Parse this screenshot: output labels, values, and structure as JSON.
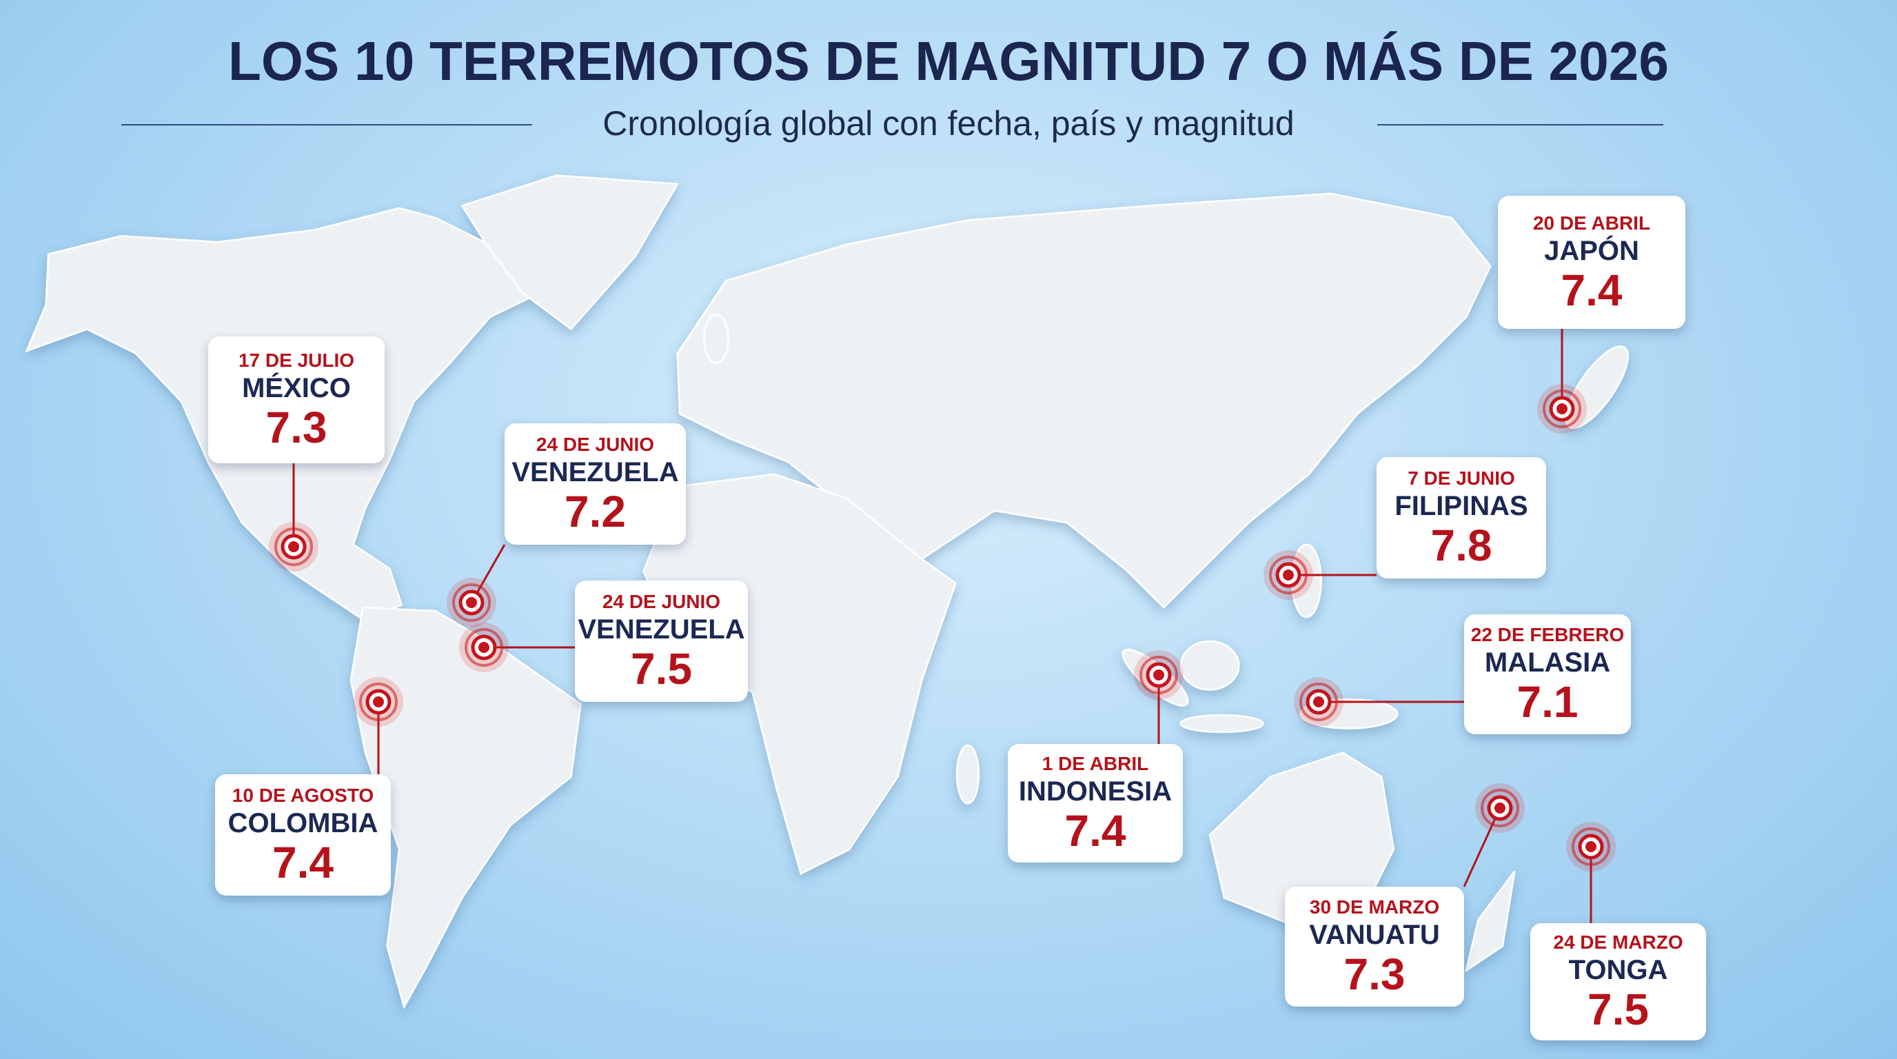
{
  "header": {
    "title": "LOS 10 TERREMOTOS DE MAGNITUD 7 O MÁS DE 2026",
    "subtitle": "Cronología global con fecha, país y magnitud"
  },
  "events": [
    {
      "date": "20 DE ABRIL",
      "country": "JAPÓN",
      "magnitude": 7.4
    },
    {
      "date": "17 DE JULIO",
      "country": "MÉXICO",
      "magnitude": 7.3
    },
    {
      "date": "24 DE JUNIO",
      "country": "VENEZUELA",
      "magnitude": 7.2
    },
    {
      "date": "7 DE JUNIO",
      "country": "FILIPINAS",
      "magnitude": 7.8
    },
    {
      "date": "24 DE JUNIO",
      "country": "VENEZUELA",
      "magnitude": 7.5
    },
    {
      "date": "22 DE FEBRERO",
      "country": "MALASIA",
      "magnitude": 7.1
    },
    {
      "date": "10 DE AGOSTO",
      "country": "COLOMBIA",
      "magnitude": 7.4
    },
    {
      "date": "1 DE ABRIL",
      "country": "INDONESIA",
      "magnitude": 7.4
    },
    {
      "date": "30 DE MARZO",
      "country": "VANUATU",
      "magnitude": 7.3
    },
    {
      "date": "24 DE MARZO",
      "country": "TONGA",
      "magnitude": 7.5
    }
  ]
}
